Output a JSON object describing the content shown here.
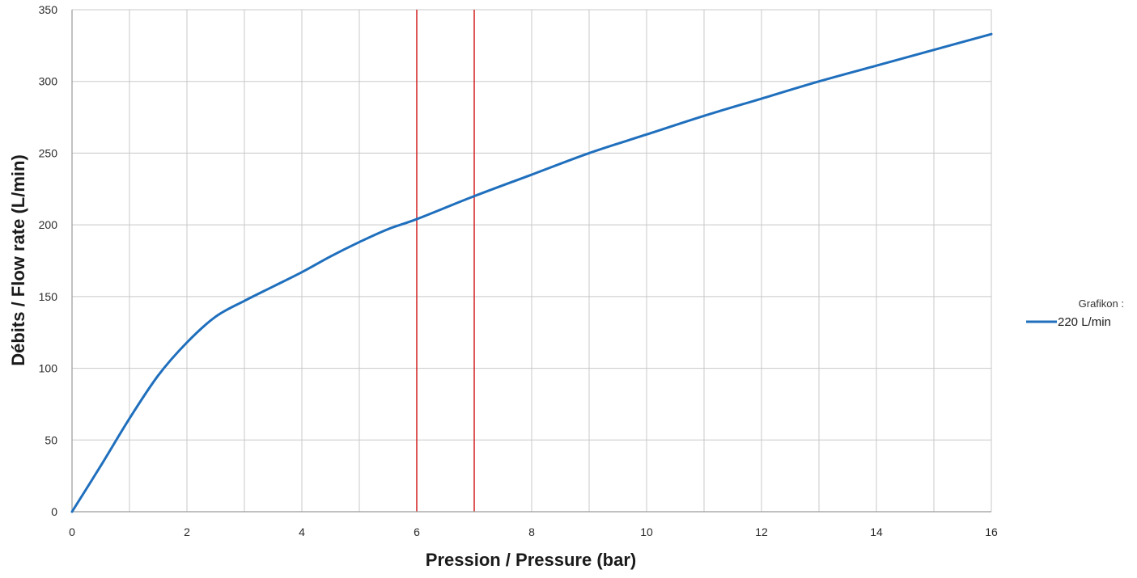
{
  "chart_data": {
    "type": "line",
    "xlabel": "Pression / Pressure (bar)",
    "ylabel": "Débits / Flow rate (L/min)",
    "xlim": [
      0,
      16
    ],
    "ylim": [
      0,
      350
    ],
    "x_ticks": [
      0,
      2,
      4,
      6,
      8,
      10,
      12,
      14,
      16
    ],
    "y_ticks": [
      0,
      50,
      100,
      150,
      200,
      250,
      300,
      350
    ],
    "grid": true,
    "legend_title": "Grafikon :",
    "legend_position": "right",
    "series": [
      {
        "name": "220 L/min",
        "color": "#1f6fbd",
        "x": [
          0,
          0.5,
          1,
          1.5,
          2,
          2.5,
          3,
          3.5,
          4,
          4.5,
          5,
          5.5,
          6,
          7,
          8,
          9,
          10,
          11,
          12,
          13,
          14,
          15,
          16
        ],
        "y": [
          0,
          32,
          65,
          95,
          118,
          136,
          147,
          157,
          167,
          178,
          188,
          197,
          204,
          220,
          235,
          250,
          263,
          276,
          288,
          300,
          311,
          322,
          333
        ]
      }
    ],
    "reference_lines": [
      {
        "axis": "x",
        "value": 6,
        "color": "#d42020"
      },
      {
        "axis": "x",
        "value": 7,
        "color": "#d42020"
      }
    ]
  }
}
